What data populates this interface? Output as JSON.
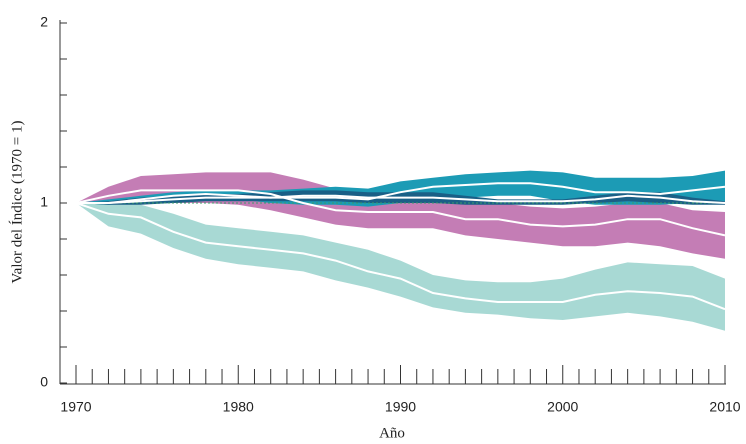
{
  "chart_data": {
    "type": "band-line",
    "x_label": "Año",
    "y_label": "Valor del Índice (1970 = 1)",
    "x": [
      1970,
      1972,
      1974,
      1976,
      1978,
      1980,
      1982,
      1984,
      1986,
      1988,
      1990,
      1992,
      1994,
      1996,
      1998,
      2000,
      2002,
      2004,
      2006,
      2008,
      2010
    ],
    "xlim": [
      1970,
      2010
    ],
    "xticks": [
      1970,
      1980,
      1990,
      2000,
      2010
    ],
    "xminorticks": [
      1971,
      1972,
      1973,
      1974,
      1975,
      1976,
      1977,
      1978,
      1979,
      1981,
      1982,
      1983,
      1984,
      1985,
      1986,
      1987,
      1988,
      1989,
      1991,
      1992,
      1993,
      1994,
      1995,
      1996,
      1997,
      1998,
      1999,
      2001,
      2002,
      2003,
      2004,
      2005,
      2006,
      2007,
      2008,
      2009
    ],
    "ylim": [
      0,
      2
    ],
    "yticks": [
      0,
      1,
      2
    ],
    "yminorticks": [
      0.2,
      0.4,
      0.6,
      0.8,
      1.2,
      1.4,
      1.6,
      1.8
    ],
    "reference_line": 1,
    "reference_color": "#3a9a6a",
    "series": [
      {
        "color": "#a8d9d4",
        "line_color": "#ffffff",
        "values": [
          1,
          0.94,
          0.92,
          0.84,
          0.78,
          0.76,
          0.74,
          0.72,
          0.68,
          0.62,
          0.58,
          0.5,
          0.47,
          0.45,
          0.45,
          0.45,
          0.49,
          0.51,
          0.5,
          0.48,
          0.41
        ],
        "upper": [
          1,
          1.0,
          0.99,
          0.94,
          0.88,
          0.86,
          0.84,
          0.82,
          0.78,
          0.74,
          0.68,
          0.6,
          0.57,
          0.56,
          0.56,
          0.58,
          0.63,
          0.67,
          0.66,
          0.65,
          0.58
        ],
        "lower": [
          1,
          0.87,
          0.83,
          0.75,
          0.69,
          0.66,
          0.64,
          0.62,
          0.57,
          0.53,
          0.48,
          0.42,
          0.39,
          0.38,
          0.36,
          0.35,
          0.37,
          0.39,
          0.37,
          0.34,
          0.29
        ]
      },
      {
        "color": "#c47db5",
        "line_color": "#ffffff",
        "values": [
          1,
          1.04,
          1.07,
          1.07,
          1.07,
          1.07,
          1.05,
          1.0,
          0.96,
          0.95,
          0.95,
          0.95,
          0.91,
          0.91,
          0.88,
          0.87,
          0.88,
          0.91,
          0.91,
          0.86,
          0.82
        ],
        "upper": [
          1,
          1.09,
          1.15,
          1.16,
          1.17,
          1.17,
          1.17,
          1.13,
          1.08,
          1.04,
          1.02,
          1.01,
          1.0,
          1.0,
          0.98,
          0.97,
          0.98,
          1.0,
          1.0,
          0.96,
          0.95
        ],
        "lower": [
          1,
          1.0,
          1.0,
          1.0,
          1.0,
          0.99,
          0.96,
          0.92,
          0.88,
          0.86,
          0.86,
          0.86,
          0.82,
          0.8,
          0.78,
          0.76,
          0.76,
          0.78,
          0.76,
          0.72,
          0.69
        ]
      },
      {
        "color": "#1c9bb5",
        "line_color": "#ffffff",
        "values": [
          1,
          1.0,
          1.02,
          1.04,
          1.05,
          1.04,
          1.03,
          1.03,
          1.03,
          1.02,
          1.06,
          1.09,
          1.1,
          1.11,
          1.11,
          1.09,
          1.06,
          1.06,
          1.05,
          1.07,
          1.09
        ],
        "upper": [
          1,
          1.02,
          1.04,
          1.06,
          1.07,
          1.07,
          1.07,
          1.08,
          1.09,
          1.08,
          1.12,
          1.14,
          1.16,
          1.17,
          1.18,
          1.17,
          1.14,
          1.14,
          1.14,
          1.15,
          1.18
        ],
        "lower": [
          1,
          0.99,
          1.0,
          1.01,
          1.02,
          1.02,
          1.0,
          0.99,
          0.99,
          0.98,
          1.0,
          1.02,
          1.03,
          1.04,
          1.04,
          1.01,
          0.99,
          0.99,
          0.99,
          1.0,
          1.01
        ]
      },
      {
        "color": "#1a5f86",
        "line_color": "#ffffff",
        "values": [
          1,
          1.0,
          1.01,
          1.02,
          1.03,
          1.03,
          1.03,
          1.04,
          1.04,
          1.03,
          1.03,
          1.03,
          1.02,
          1.01,
          1.01,
          1.01,
          1.02,
          1.04,
          1.03,
          1.01,
          1.0
        ],
        "upper": [
          1,
          1.01,
          1.03,
          1.04,
          1.05,
          1.05,
          1.06,
          1.07,
          1.07,
          1.06,
          1.06,
          1.06,
          1.04,
          1.02,
          1.02,
          1.02,
          1.04,
          1.06,
          1.06,
          1.03,
          1.01
        ],
        "lower": [
          1,
          0.99,
          0.99,
          1.0,
          1.01,
          1.01,
          1.01,
          1.01,
          1.01,
          1.0,
          1.0,
          1.0,
          0.99,
          0.99,
          0.99,
          0.99,
          1.0,
          1.01,
          1.0,
          0.99,
          0.99
        ]
      }
    ]
  }
}
